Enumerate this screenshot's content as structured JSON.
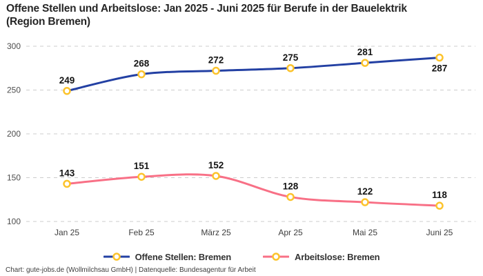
{
  "header": {
    "title_line1": "Offene Stellen und Arbeitslose: Jan 2025 - Juni 2025 für Berufe in der Bauelektrik",
    "title_line2": "(Region Bremen)"
  },
  "chart_data": {
    "type": "line",
    "title": "Offene Stellen und Arbeitslose: Jan 2025 - Juni 2025 für Berufe in der Bauelektrik (Region Bremen)",
    "categories": [
      "Jan 25",
      "Feb 25",
      "März 25",
      "Apr 25",
      "Mai 25",
      "Juni 25"
    ],
    "series": [
      {
        "name": "Offene Stellen: Bremen",
        "color": "#2340a3",
        "values": [
          249,
          268,
          272,
          275,
          281,
          287
        ],
        "label_positions": [
          "above",
          "above",
          "above",
          "above",
          "above",
          "below"
        ]
      },
      {
        "name": "Arbeitslose: Bremen",
        "color": "#f87086",
        "values": [
          143,
          151,
          152,
          128,
          122,
          118
        ],
        "label_positions": [
          "above",
          "above",
          "above",
          "above",
          "above",
          "above"
        ]
      }
    ],
    "marker": {
      "fill": "#ffffff",
      "stroke": "#fcc32c"
    },
    "ylim": [
      100,
      300
    ],
    "yticks": [
      100,
      150,
      200,
      250,
      300
    ],
    "grid": "dashed-horizontal",
    "grid_color": "#cccccc",
    "show_value_labels": true,
    "legend_position": "bottom"
  },
  "footer": {
    "source_line": "Chart: gute-jobs.de (Wollmilchsau GmbH) | Datenquelle: Bundesagentur für Arbeit"
  }
}
